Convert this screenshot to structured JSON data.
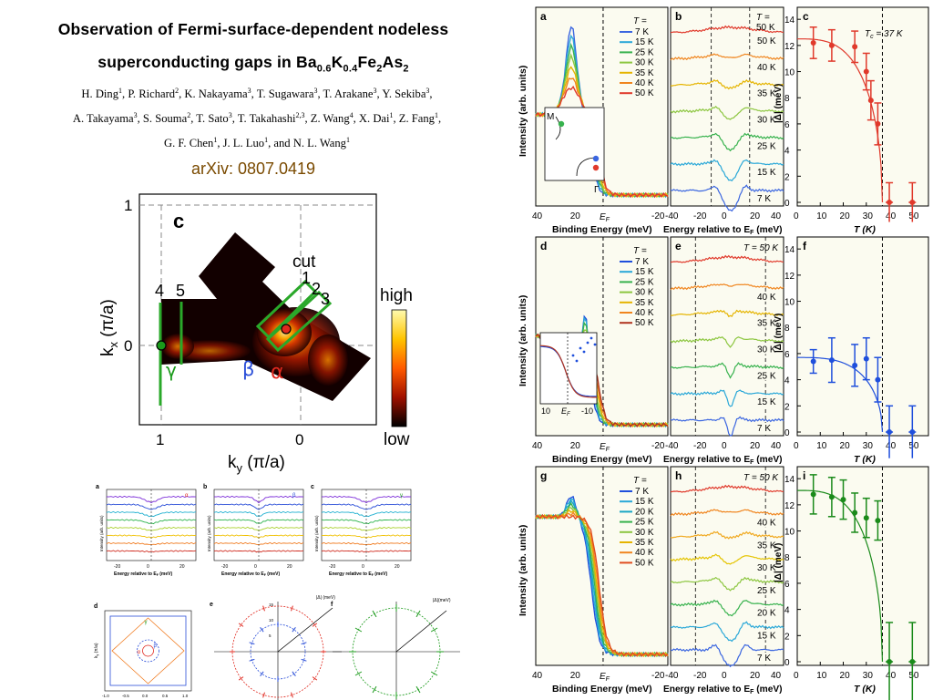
{
  "paper": {
    "title_line1": "Observation of Fermi-surface-dependent nodeless",
    "title_line2_main": "superconducting gaps in Ba",
    "title_line2_sub1": "0.6",
    "title_line2_k": "K",
    "title_line2_sub2": "0.4",
    "title_line2_fe": "Fe",
    "title_line2_sub3": "2",
    "title_line2_as": "As",
    "title_line2_sub4": "2",
    "authors": [
      {
        "name": "H. Ding",
        "aff": "1"
      },
      {
        "name": "P. Richard",
        "aff": "2"
      },
      {
        "name": "K. Nakayama",
        "aff": "3"
      },
      {
        "name": "T. Sugawara",
        "aff": "3"
      },
      {
        "name": "T. Arakane",
        "aff": "3"
      },
      {
        "name": "Y. Sekiba",
        "aff": "3"
      },
      {
        "name": "A. Takayama",
        "aff": "3"
      },
      {
        "name": "S. Souma",
        "aff": "2"
      },
      {
        "name": "T. Sato",
        "aff": "3"
      },
      {
        "name": "T. Takahashi",
        "aff": "2,3"
      },
      {
        "name": "Z. Wang",
        "aff": "4"
      },
      {
        "name": "X. Dai",
        "aff": "1"
      },
      {
        "name": "Z. Fang",
        "aff": "1"
      },
      {
        "name": "G. F. Chen",
        "aff": "1"
      },
      {
        "name": "J. L. Luo",
        "aff": "1"
      },
      {
        "name": "N. L. Wang",
        "aff": "1"
      }
    ],
    "arxiv": "arXiv: 0807.0419"
  },
  "fs_map": {
    "panel_label": "c",
    "xlabel": "k",
    "xlabel_sub": "y",
    "xlabel_unit": " (π/a)",
    "ylabel": "k",
    "ylabel_sub": "x",
    "ylabel_unit": " (π/a)",
    "x_ticks": [
      "1",
      "0"
    ],
    "y_ticks": [
      "1",
      "0"
    ],
    "cut_label": "cut",
    "cut_numbers": [
      "1",
      "2",
      "3",
      "4",
      "5"
    ],
    "band_labels": {
      "gamma": "γ",
      "beta": "β",
      "alpha": "α"
    },
    "colorbar_high": "high",
    "colorbar_low": "low"
  },
  "small_panels": {
    "labels": [
      "a",
      "b",
      "c",
      "d",
      "e",
      "f"
    ],
    "xlabel": "Energy relative to E",
    "xlabel_sub": "F",
    "xlabel_unit": " (meV)",
    "ylabel": "Intensity (arb. units)",
    "x_ticks": [
      "-20",
      "0",
      "20"
    ],
    "d_ticks_x": [
      "-1.0",
      "-0.5",
      "0.0",
      "0.5",
      "1.0"
    ],
    "d_xlabel": "k",
    "d_xlabel_sub": "x",
    "d_xlabel_unit": " (π/a)",
    "d_ylabel": "k",
    "d_ylabel_sub": "y",
    "d_ylabel_unit": " (π/a)",
    "greek_a": "α",
    "greek_b": "β",
    "greek_c": "γ",
    "e_axis": "|Δ| (meV)",
    "f_axis": "|Δ|(meV)",
    "e_ticks": [
      "15",
      "10",
      "5"
    ]
  },
  "arpes_grid": {
    "rows": [
      {
        "edc": {
          "label": "a",
          "T_header": "T =",
          "temps": [
            "7 K",
            "15 K",
            "25 K",
            "30 K",
            "35 K",
            "40 K",
            "50 K"
          ],
          "colors": [
            "#3b66e0",
            "#2aa8d8",
            "#37b24d",
            "#8cc63f",
            "#e5b400",
            "#f0851e",
            "#e0392b"
          ],
          "xlabel": "Binding Energy (meV)",
          "x_ticks": [
            "40",
            "20",
            "",
            "-20"
          ],
          "ef_label": "E",
          "ef_sub": "F",
          "inset": {
            "M": "M",
            "Gamma": "Γ"
          }
        },
        "sym": {
          "label": "b",
          "T_header": "T =",
          "T_header2": "50 K",
          "temps": [
            "50 K",
            "40 K",
            "35 K",
            "30 K",
            "25 K",
            "15 K",
            "7 K"
          ],
          "colors": [
            "#e0392b",
            "#f0851e",
            "#e5b400",
            "#8cc63f",
            "#37b24d",
            "#2aa8d8",
            "#3b66e0"
          ],
          "xlabel": "Energy relative to E",
          "xlabel_sub": "F",
          "xlabel_unit": " (meV)",
          "x_ticks": [
            "-40",
            "-20",
            "0",
            "20",
            "40"
          ]
        },
        "gap": {
          "label": "c",
          "tc_label": "T",
          "tc_sub": "c",
          "tc_value": " = 37 K",
          "color": "#e0392b",
          "ylabel": "|Δ| (meV)",
          "xlabel": "T (K)",
          "y_ticks": [
            "0",
            "2",
            "4",
            "6",
            "8",
            "10",
            "12",
            "14"
          ],
          "x_ticks": [
            "0",
            "10",
            "20",
            "30",
            "40",
            "50"
          ],
          "T": [
            7,
            15,
            25,
            30,
            32,
            35,
            40,
            50
          ],
          "gap_values": [
            12.2,
            12.0,
            11.9,
            10.0,
            7.8,
            6.0,
            0,
            0
          ],
          "errors": [
            1.2,
            1.2,
            1.2,
            1.4,
            1.5,
            1.6,
            1.5,
            1.5
          ],
          "ylim": [
            0,
            14.5
          ],
          "xlim": [
            0,
            57
          ],
          "tc": 37
        }
      },
      {
        "edc": {
          "label": "d",
          "T_header": "T =",
          "temps": [
            "7 K",
            "15 K",
            "25 K",
            "30 K",
            "35 K",
            "40 K",
            "50 K"
          ],
          "colors": [
            "#1f4fdc",
            "#2aa8d8",
            "#37b24d",
            "#8cc63f",
            "#e5b400",
            "#f0851e",
            "#b0341f"
          ],
          "xlabel": "Binding Energy (meV)",
          "x_ticks": [
            "40",
            "20",
            "",
            "-20"
          ],
          "ef_label": "E",
          "ef_sub": "F",
          "inset": {
            "x_ticks": [
              "10",
              "-10"
            ],
            "ef": "E",
            "ef_sub": "F"
          }
        },
        "sym": {
          "label": "e",
          "T_header": "T = 50 K",
          "temps": [
            "40 K",
            "35 K",
            "30 K",
            "25 K",
            "15 K",
            "7 K"
          ],
          "colors": [
            "#e0392b",
            "#f0851e",
            "#e5b400",
            "#8cc63f",
            "#37b24d",
            "#2aa8d8",
            "#3b66e0"
          ],
          "xlabel": "Energy relative to E",
          "xlabel_sub": "F",
          "xlabel_unit": " (meV)",
          "x_ticks": [
            "-40",
            "-20",
            "0",
            "20",
            "40"
          ]
        },
        "gap": {
          "label": "f",
          "color": "#1f4fdc",
          "ylabel": "|Δ| (meV)",
          "xlabel": "T (K)",
          "y_ticks": [
            "0",
            "2",
            "4",
            "6",
            "8",
            "10",
            "12",
            "14"
          ],
          "x_ticks": [
            "0",
            "10",
            "20",
            "30",
            "40",
            "50"
          ],
          "T": [
            7,
            15,
            25,
            30,
            35,
            40,
            50
          ],
          "gap_values": [
            5.4,
            5.5,
            5.1,
            5.6,
            4.0,
            0,
            0
          ],
          "errors": [
            0.9,
            1.7,
            1.6,
            1.6,
            1.7,
            2.0,
            2.0
          ],
          "ylim": [
            0,
            14.5
          ],
          "xlim": [
            0,
            57
          ],
          "tc": 37
        }
      },
      {
        "edc": {
          "label": "g",
          "T_header": "T =",
          "temps": [
            "7 K",
            "15 K",
            "20 K",
            "25 K",
            "30 K",
            "35 K",
            "40 K",
            "50 K"
          ],
          "colors": [
            "#1f4fdc",
            "#2aa8d8",
            "#1aa6c4",
            "#37b24d",
            "#8cc63f",
            "#e5b400",
            "#f0851e",
            "#e04d1f"
          ],
          "xlabel": "Binding Energy (meV)",
          "x_ticks": [
            "40",
            "20",
            "",
            "-20"
          ],
          "ef_label": "E",
          "ef_sub": "F"
        },
        "sym": {
          "label": "h",
          "T_header": "T = 50 K",
          "temps": [
            "40 K",
            "35 K",
            "30 K",
            "25 K",
            "20 K",
            "15 K",
            "7 K"
          ],
          "colors": [
            "#e0392b",
            "#f0851e",
            "#f0a81e",
            "#e5c400",
            "#8cc63f",
            "#37b24d",
            "#2aa8d8",
            "#3b66e0"
          ],
          "xlabel": "Energy relative to E",
          "xlabel_sub": "F",
          "xlabel_unit": " (meV)",
          "x_ticks": [
            "-40",
            "-20",
            "0",
            "20",
            "40"
          ]
        },
        "gap": {
          "label": "i",
          "color": "#1a8a1a",
          "ylabel": "|Δ| (meV)",
          "xlabel": "T (K)",
          "y_ticks": [
            "0",
            "2",
            "4",
            "6",
            "8",
            "10",
            "12",
            "14"
          ],
          "x_ticks": [
            "0",
            "10",
            "20",
            "30",
            "40",
            "50"
          ],
          "T": [
            7,
            15,
            20,
            25,
            30,
            35,
            40,
            50
          ],
          "gap_values": [
            12.8,
            12.6,
            12.4,
            11.4,
            11.0,
            10.8,
            0,
            0
          ],
          "errors": [
            1.5,
            1.5,
            1.5,
            1.5,
            1.5,
            1.5,
            3.0,
            3.0
          ],
          "ylim": [
            0,
            14.5
          ],
          "xlim": [
            0,
            57
          ],
          "tc": 37
        }
      }
    ],
    "edc_ylabel": "Intensity (arb. units)"
  },
  "colors": {
    "arxiv": "#7a4a00",
    "cut_lines": "#2aa82a",
    "gamma": "#1a9a1a",
    "beta": "#2a4ed8",
    "alpha": "#e0281e"
  }
}
